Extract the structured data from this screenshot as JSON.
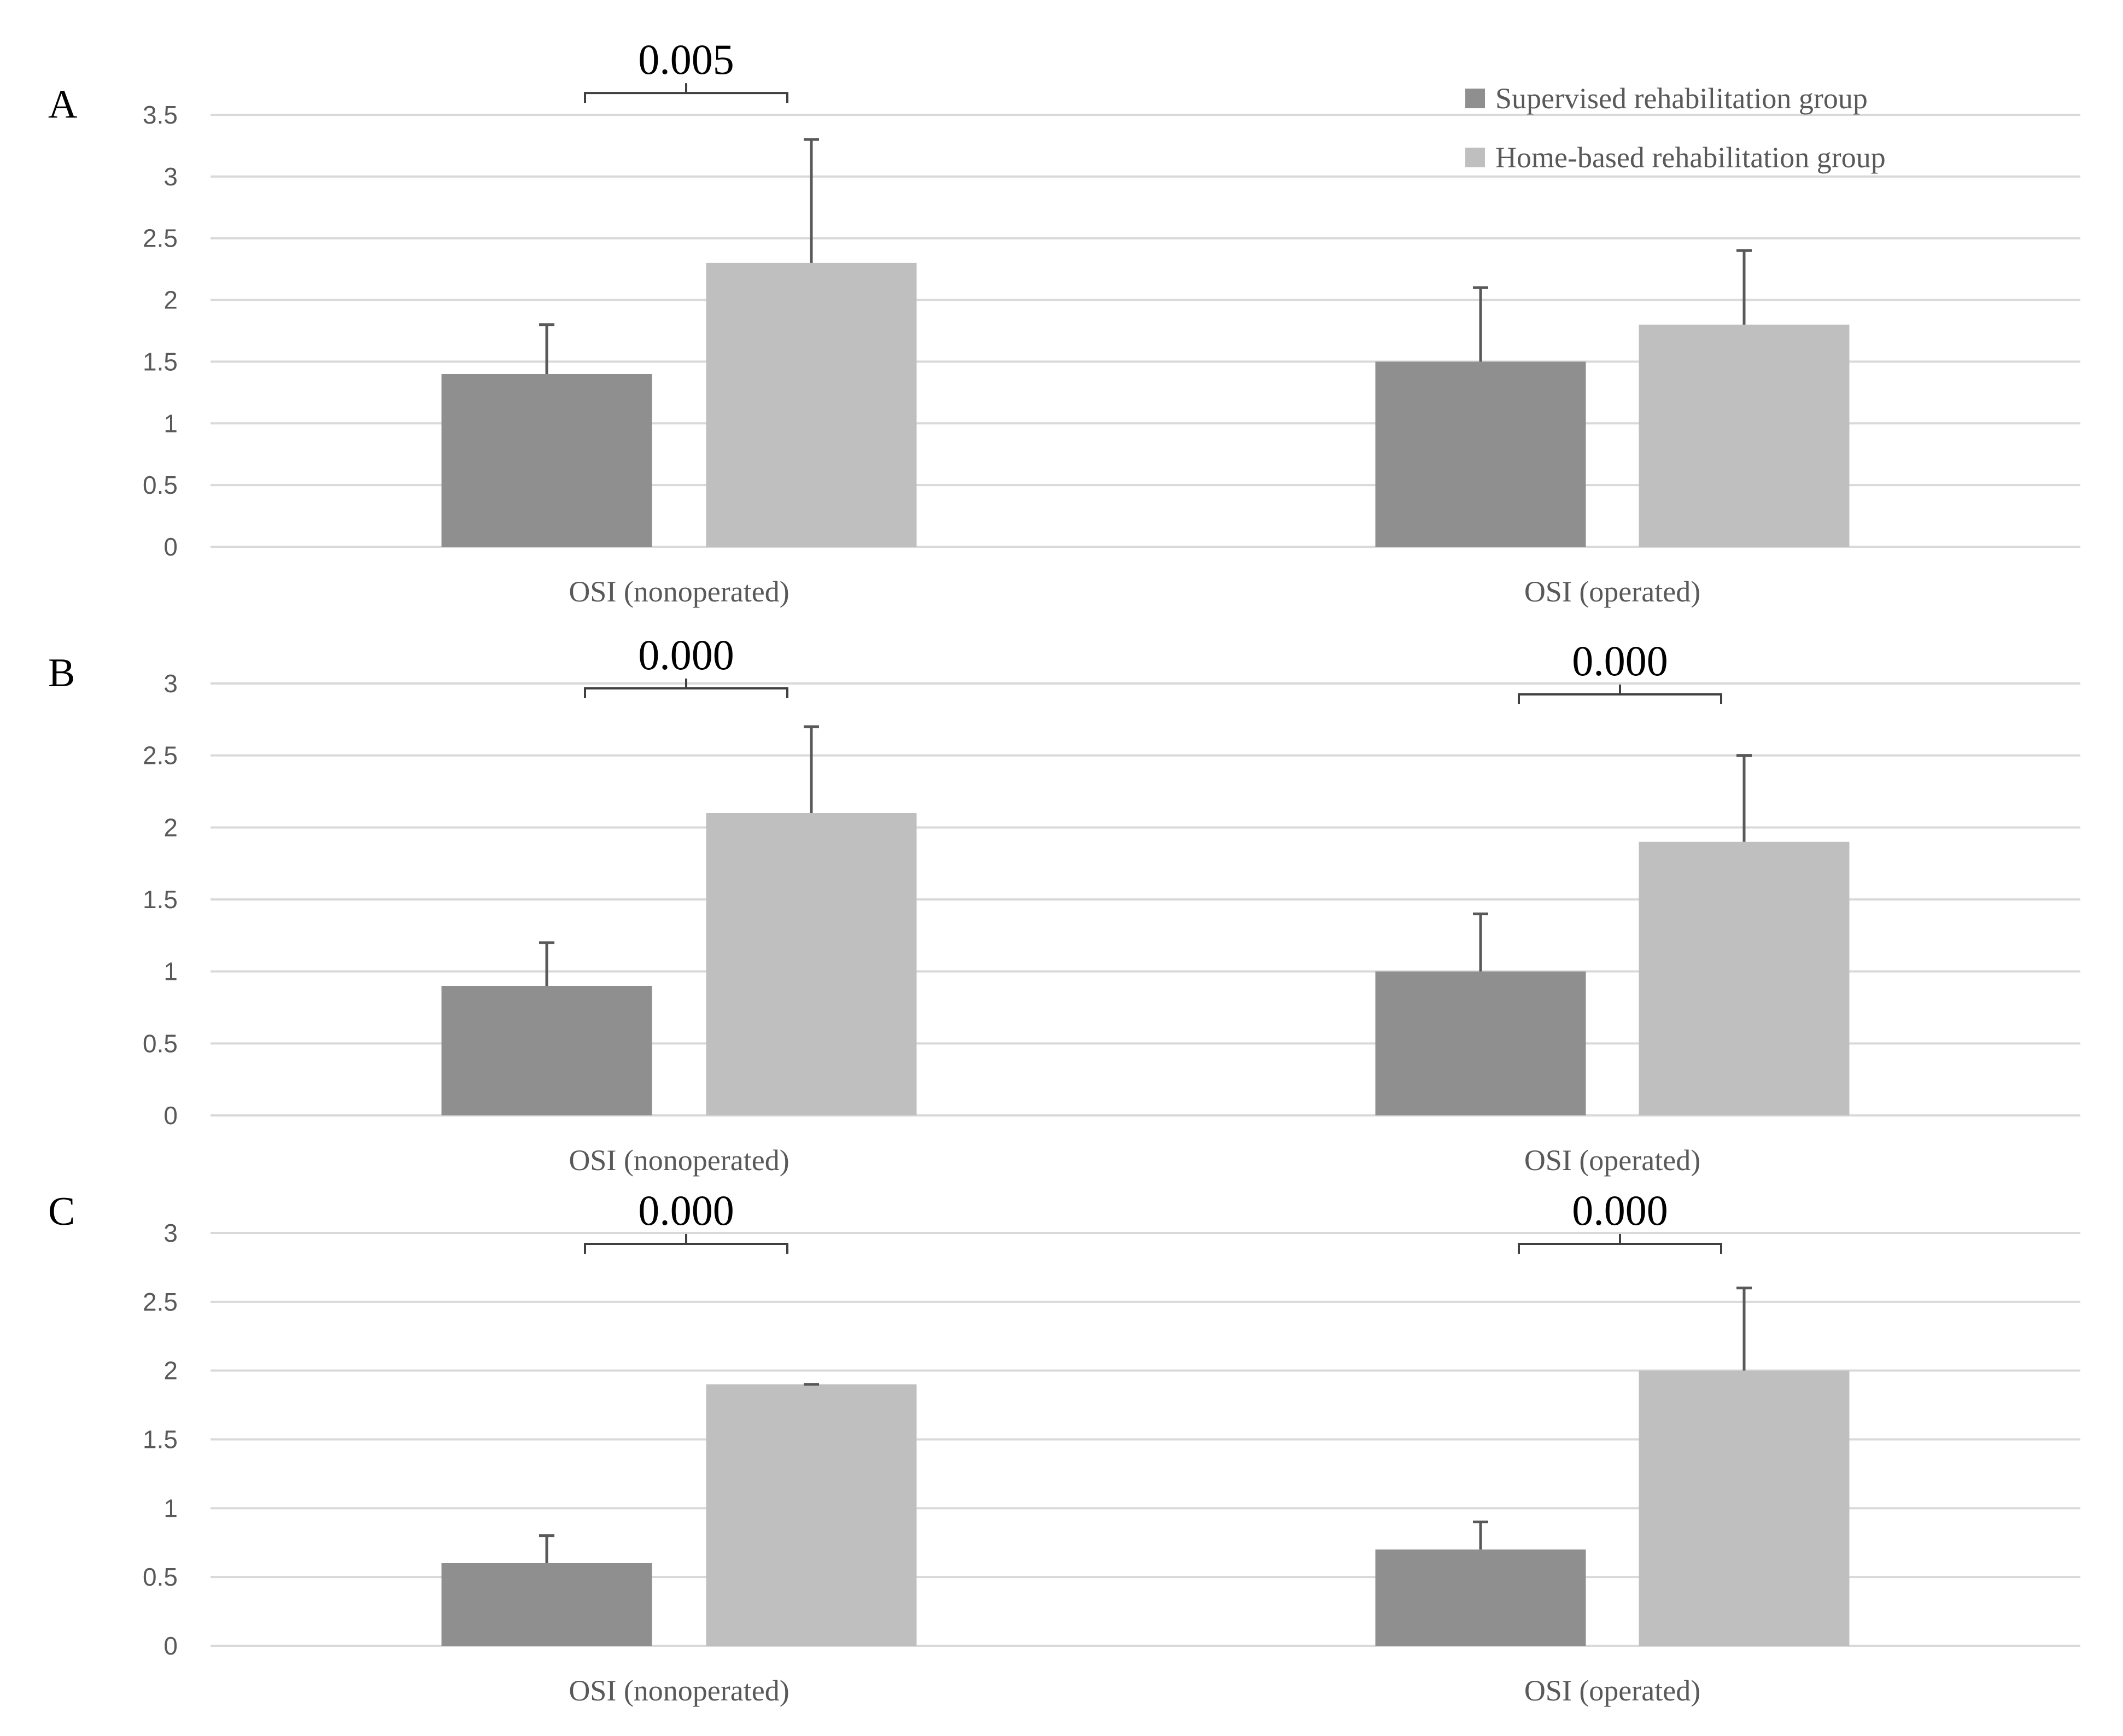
{
  "legend": {
    "placement": "top-right",
    "entries": [
      {
        "label": "Supervised rehabilitation group",
        "color": "#8f8f8f"
      },
      {
        "label": "Home-based rehabilitation group",
        "color": "#bfbfbf"
      }
    ]
  },
  "colors": {
    "grid": "#d9d9d9",
    "error_bar": "#595959",
    "bracket": "#404040"
  },
  "chart_data": [
    {
      "panel": "A",
      "type": "bar",
      "grid": true,
      "categories": [
        "OSI (nonoperated)",
        "OSI (operated)"
      ],
      "ylim": [
        0,
        3.5
      ],
      "yticks": [
        0,
        0.5,
        1,
        1.5,
        2,
        2.5,
        3,
        3.5
      ],
      "series": [
        {
          "name": "Supervised rehabilitation group",
          "values": [
            1.4,
            1.5
          ],
          "errors": [
            0.4,
            0.6
          ]
        },
        {
          "name": "Home-based rehabilitation group",
          "values": [
            2.3,
            1.8
          ],
          "errors": [
            1.0,
            0.6
          ]
        }
      ],
      "annotations": [
        {
          "category": 0,
          "label": "0.005"
        }
      ]
    },
    {
      "panel": "B",
      "type": "bar",
      "grid": true,
      "categories": [
        "OSI (nonoperated)",
        "OSI (operated)"
      ],
      "ylim": [
        0,
        3
      ],
      "yticks": [
        0,
        0.5,
        1,
        1.5,
        2,
        2.5,
        3
      ],
      "series": [
        {
          "name": "Supervised rehabilitation group",
          "values": [
            0.9,
            1.0
          ],
          "errors": [
            0.3,
            0.4
          ]
        },
        {
          "name": "Home-based rehabilitation group",
          "values": [
            2.1,
            1.9
          ],
          "errors": [
            0.6,
            0.6
          ]
        }
      ],
      "annotations": [
        {
          "category": 0,
          "label": "0.000"
        },
        {
          "category": 1,
          "label": "0.000"
        }
      ]
    },
    {
      "panel": "C",
      "type": "bar",
      "grid": true,
      "categories": [
        "OSI (nonoperated)",
        "OSI (operated)"
      ],
      "ylim": [
        0,
        3
      ],
      "yticks": [
        0,
        0.5,
        1,
        1.5,
        2,
        2.5,
        3
      ],
      "series": [
        {
          "name": "Supervised rehabilitation group",
          "values": [
            0.6,
            0.7
          ],
          "errors": [
            0.2,
            0.2
          ]
        },
        {
          "name": "Home-based rehabilitation group",
          "values": [
            1.9,
            2.0
          ],
          "errors": [
            0.0,
            0.6
          ]
        }
      ],
      "annotations": [
        {
          "category": 0,
          "label": "0.000"
        },
        {
          "category": 1,
          "label": "0.000"
        }
      ]
    }
  ]
}
